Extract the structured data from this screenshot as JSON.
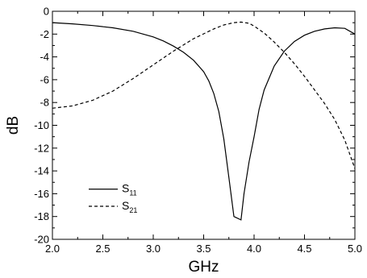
{
  "chart_data": {
    "type": "line",
    "xlabel": "GHz",
    "ylabel": "dB",
    "xlim": [
      2.0,
      5.0
    ],
    "ylim": [
      -20,
      0
    ],
    "xticks": [
      "2.0",
      "2.5",
      "3.0",
      "3.5",
      "4.0",
      "4.5",
      "5.0"
    ],
    "yticks": [
      "0",
      "-2",
      "-4",
      "-6",
      "-8",
      "-10",
      "-12",
      "-14",
      "-16",
      "-18",
      "-20"
    ],
    "grid": false,
    "legend_position": "bottom-left",
    "series": [
      {
        "name": "S11",
        "legend_main": "S",
        "legend_sub": "11",
        "line_style": "solid",
        "color": "#000000",
        "x": [
          2.0,
          2.2,
          2.4,
          2.6,
          2.8,
          3.0,
          3.1,
          3.2,
          3.3,
          3.4,
          3.5,
          3.55,
          3.6,
          3.65,
          3.7,
          3.75,
          3.8,
          3.87,
          3.9,
          3.95,
          4.0,
          4.05,
          4.1,
          4.2,
          4.3,
          4.4,
          4.5,
          4.6,
          4.7,
          4.8,
          4.9,
          5.0
        ],
        "y": [
          -1.0,
          -1.1,
          -1.25,
          -1.45,
          -1.75,
          -2.25,
          -2.6,
          -3.05,
          -3.6,
          -4.3,
          -5.3,
          -6.1,
          -7.2,
          -8.8,
          -11.2,
          -14.6,
          -18.0,
          -18.3,
          -16.0,
          -13.2,
          -11.0,
          -8.6,
          -6.9,
          -4.8,
          -3.5,
          -2.65,
          -2.1,
          -1.75,
          -1.55,
          -1.45,
          -1.5,
          -2.0
        ]
      },
      {
        "name": "S21",
        "legend_main": "S",
        "legend_sub": "21",
        "line_style": "dashed",
        "color": "#000000",
        "x": [
          2.0,
          2.2,
          2.4,
          2.6,
          2.8,
          3.0,
          3.2,
          3.4,
          3.6,
          3.7,
          3.8,
          3.87,
          3.95,
          4.0,
          4.1,
          4.2,
          4.3,
          4.4,
          4.5,
          4.6,
          4.7,
          4.8,
          4.9,
          5.0
        ],
        "y": [
          -8.5,
          -8.3,
          -7.8,
          -7.0,
          -5.9,
          -4.7,
          -3.5,
          -2.4,
          -1.55,
          -1.2,
          -1.0,
          -0.95,
          -1.05,
          -1.3,
          -1.9,
          -2.7,
          -3.6,
          -4.6,
          -5.7,
          -6.9,
          -8.1,
          -9.5,
          -11.3,
          -13.8
        ]
      }
    ]
  }
}
